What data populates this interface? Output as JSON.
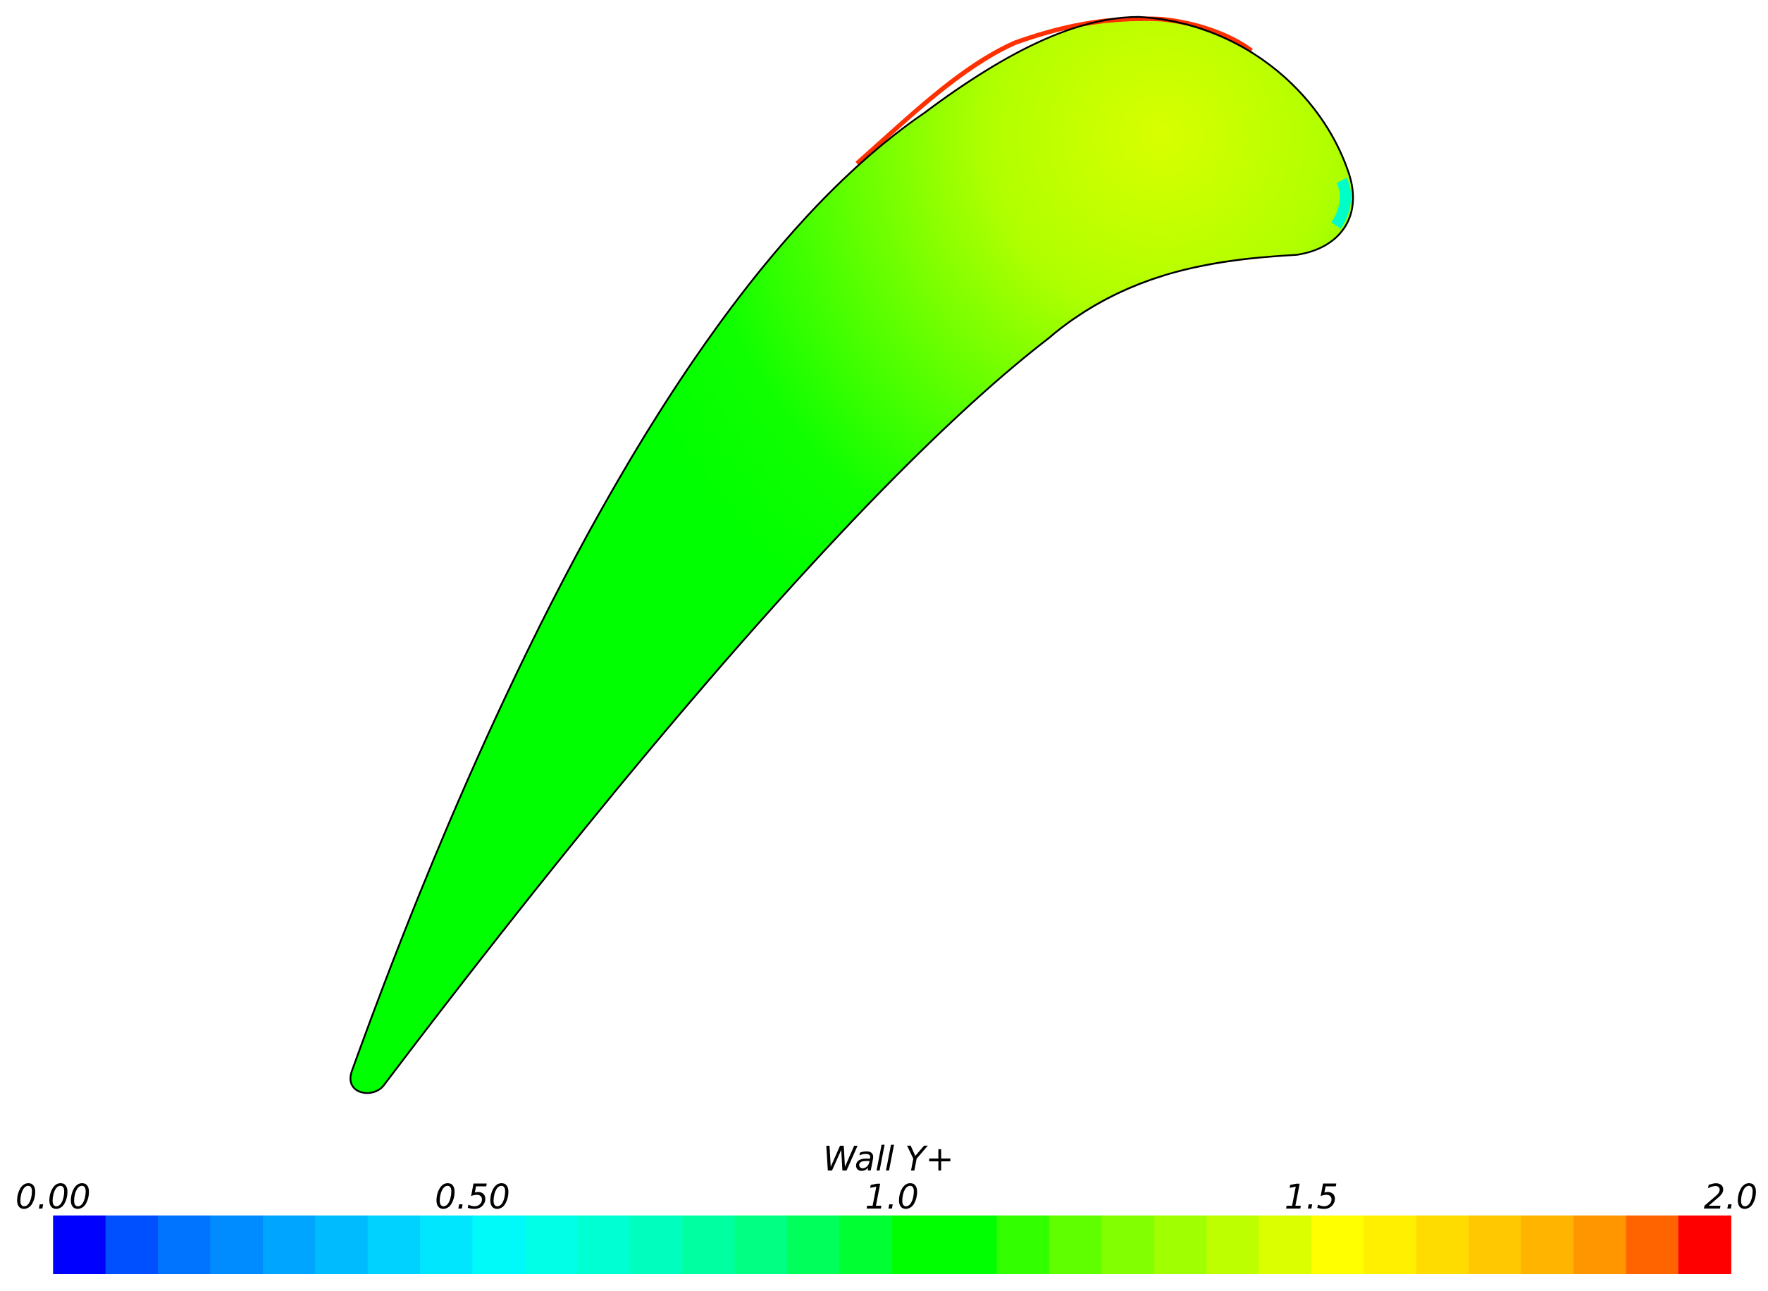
{
  "chart_data": {
    "type": "contour",
    "colorbar": {
      "label": "Wall Y+",
      "lim": [
        0,
        2
      ],
      "ticks": [
        {
          "value": 0,
          "label": "0.00"
        },
        {
          "value": 0.5,
          "label": "0.50"
        },
        {
          "value": 1,
          "label": "1.0"
        },
        {
          "value": 1.5,
          "label": "1.5"
        },
        {
          "value": 2,
          "label": "2.0"
        }
      ],
      "colors": [
        "#0000ff",
        "#0050ff",
        "#0073ff",
        "#008cff",
        "#00a5ff",
        "#00bcff",
        "#00d2ff",
        "#00e6ff",
        "#00fafa",
        "#00ffe6",
        "#00ffd2",
        "#00ffbe",
        "#00ffa0",
        "#00ff82",
        "#00ff5a",
        "#00ff32",
        "#00ff00",
        "#00ff00",
        "#32ff00",
        "#5fff00",
        "#82ff00",
        "#a0ff00",
        "#beff00",
        "#dcff00",
        "#ffff00",
        "#fff000",
        "#ffdc00",
        "#ffc800",
        "#ffb400",
        "#ff9600",
        "#ff6400",
        "#ff0000"
      ]
    }
  }
}
